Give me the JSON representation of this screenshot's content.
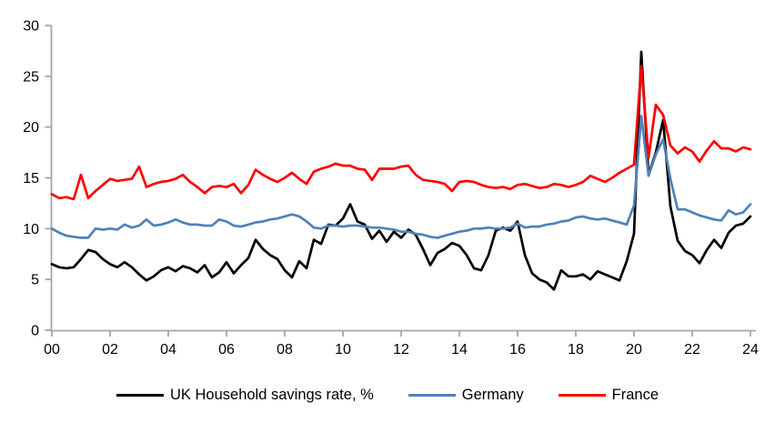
{
  "chart_data": {
    "type": "line",
    "title": "",
    "xlabel": "",
    "ylabel": "",
    "x_unit": "quarterly",
    "x_start_year": 2000,
    "x_tick_labels": [
      "00",
      "02",
      "04",
      "06",
      "08",
      "10",
      "12",
      "14",
      "16",
      "18",
      "20",
      "22",
      "24"
    ],
    "y_ticks": [
      0,
      5,
      10,
      15,
      20,
      25,
      30
    ],
    "ylim": [
      0,
      30
    ],
    "grid": false,
    "legend_position": "bottom",
    "axis_color": "#a6a6a6",
    "tick_text_color": "#000000",
    "series": [
      {
        "name": "UK Household savings rate, %",
        "color": "#000000",
        "values": [
          6.5,
          6.2,
          6.1,
          6.2,
          7.0,
          7.9,
          7.7,
          7.0,
          6.5,
          6.2,
          6.7,
          6.2,
          5.5,
          4.9,
          5.3,
          5.9,
          6.2,
          5.8,
          6.3,
          6.1,
          5.7,
          6.4,
          5.2,
          5.7,
          6.7,
          5.6,
          6.4,
          7.1,
          8.9,
          8.0,
          7.4,
          7.0,
          5.9,
          5.2,
          6.8,
          6.1,
          8.9,
          8.5,
          10.4,
          10.3,
          11.0,
          12.4,
          10.7,
          10.4,
          9.0,
          9.8,
          8.7,
          9.7,
          9.1,
          9.9,
          9.4,
          8.0,
          6.4,
          7.6,
          8.0,
          8.6,
          8.3,
          7.4,
          6.1,
          5.9,
          7.4,
          9.8,
          10.1,
          9.8,
          10.7,
          7.4,
          5.6,
          5.0,
          4.7,
          4.0,
          5.9,
          5.3,
          5.3,
          5.5,
          5.0,
          5.8,
          5.5,
          5.2,
          4.9,
          6.8,
          9.5,
          27.4,
          15.3,
          17.5,
          20.7,
          12.2,
          8.8,
          7.8,
          7.4,
          6.6,
          7.9,
          8.9,
          8.1,
          9.6,
          10.3,
          10.5,
          11.2
        ]
      },
      {
        "name": "Germany",
        "color": "#4f82b8",
        "values": [
          10.0,
          9.6,
          9.3,
          9.2,
          9.1,
          9.1,
          10.0,
          9.9,
          10.0,
          9.9,
          10.4,
          10.1,
          10.3,
          10.9,
          10.3,
          10.4,
          10.6,
          10.9,
          10.6,
          10.4,
          10.4,
          10.3,
          10.3,
          10.9,
          10.7,
          10.3,
          10.2,
          10.4,
          10.6,
          10.7,
          10.9,
          11.0,
          11.2,
          11.4,
          11.2,
          10.7,
          10.1,
          10.0,
          10.3,
          10.3,
          10.2,
          10.3,
          10.3,
          10.2,
          10.1,
          10.1,
          10.0,
          9.9,
          9.7,
          9.7,
          9.5,
          9.4,
          9.2,
          9.1,
          9.3,
          9.5,
          9.7,
          9.8,
          10.0,
          10.0,
          10.1,
          10.0,
          10.0,
          10.1,
          10.5,
          10.1,
          10.2,
          10.2,
          10.4,
          10.5,
          10.7,
          10.8,
          11.1,
          11.2,
          11.0,
          10.9,
          11.0,
          10.8,
          10.6,
          10.4,
          12.3,
          21.1,
          15.2,
          17.3,
          18.8,
          14.9,
          11.9,
          11.9,
          11.6,
          11.3,
          11.1,
          10.9,
          10.8,
          11.8,
          11.4,
          11.6,
          12.4
        ]
      },
      {
        "name": "France",
        "color": "#ff0000",
        "values": [
          13.4,
          13.0,
          13.1,
          12.9,
          15.3,
          13.0,
          13.7,
          14.3,
          14.9,
          14.7,
          14.8,
          14.9,
          16.1,
          14.1,
          14.4,
          14.6,
          14.7,
          14.9,
          15.3,
          14.6,
          14.1,
          13.5,
          14.1,
          14.2,
          14.1,
          14.4,
          13.5,
          14.3,
          15.8,
          15.3,
          14.9,
          14.6,
          15.0,
          15.5,
          14.9,
          14.4,
          15.6,
          15.9,
          16.1,
          16.4,
          16.2,
          16.2,
          15.9,
          15.8,
          14.8,
          15.9,
          15.9,
          15.9,
          16.1,
          16.2,
          15.3,
          14.8,
          14.7,
          14.6,
          14.4,
          13.7,
          14.6,
          14.7,
          14.6,
          14.3,
          14.1,
          14.0,
          14.1,
          13.9,
          14.3,
          14.4,
          14.2,
          14.0,
          14.1,
          14.4,
          14.3,
          14.1,
          14.3,
          14.6,
          15.2,
          14.9,
          14.6,
          15.0,
          15.5,
          15.9,
          16.3,
          26.0,
          17.0,
          22.2,
          21.2,
          18.2,
          17.4,
          18.0,
          17.6,
          16.6,
          17.7,
          18.6,
          17.9,
          17.9,
          17.6,
          18.0,
          17.8
        ]
      }
    ]
  }
}
